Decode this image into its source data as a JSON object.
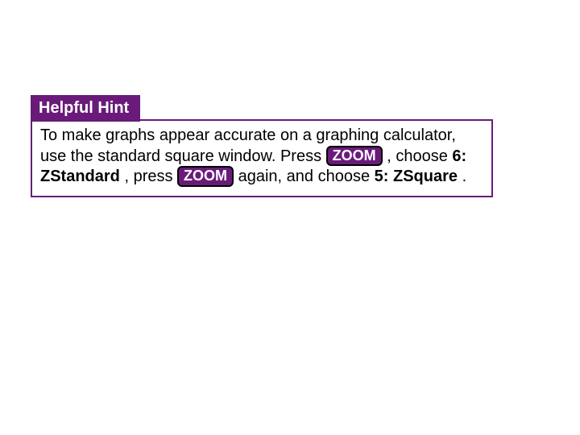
{
  "hint": {
    "title": "Helpful Hint",
    "p1": "To make graphs appear accurate on a graphing calculator, use the standard square window. Press ",
    "key1": "ZOOM",
    "p2": ", choose ",
    "opt1": "6: ZStandard",
    "p3": ", press ",
    "key2": "ZOOM",
    "p4": " again, and choose ",
    "opt2": "5: ZSquare",
    "p5": ". "
  },
  "colors": {
    "accent": "#6a1b7a",
    "border": "#6a1b7a",
    "key_border": "#000000",
    "background": "#ffffff",
    "text": "#000000"
  }
}
